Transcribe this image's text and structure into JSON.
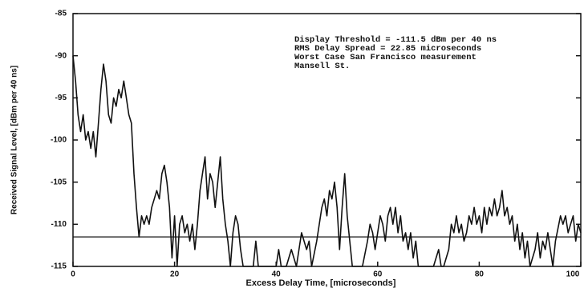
{
  "chart_data": {
    "type": "line",
    "xlabel": "Excess Delay Time, [microseconds]",
    "ylabel": "Received Signal Level, [dBm per 40 ns]",
    "annotations": [
      "Display Threshold = -111.5 dBm per 40 ns",
      "RMS Delay Spread  = 22.85 microseconds",
      "Worst Case San Francisco measurement",
      "Mansell St."
    ],
    "threshold": -111.5,
    "xlim": [
      0,
      100
    ],
    "xticks": [
      0,
      20,
      40,
      60,
      80,
      100
    ],
    "ylim": [
      -115,
      -85
    ],
    "yticks": [
      -115,
      -110,
      -105,
      -100,
      -95,
      -90,
      -85
    ],
    "x": [
      0,
      0.5,
      1,
      1.5,
      2,
      2.5,
      3,
      3.5,
      4,
      4.5,
      5,
      5.5,
      6,
      6.5,
      7,
      7.5,
      8,
      8.5,
      9,
      9.5,
      10,
      10.5,
      11,
      11.5,
      12,
      12.5,
      13,
      13.5,
      14,
      14.5,
      15,
      15.5,
      16,
      16.5,
      17,
      17.5,
      18,
      18.5,
      19,
      19.5,
      20,
      20.5,
      21,
      21.5,
      22,
      22.5,
      23,
      23.5,
      24,
      24.5,
      25,
      25.5,
      26,
      26.5,
      27,
      27.5,
      28,
      28.5,
      29,
      29.5,
      30,
      30.5,
      31,
      31.5,
      32,
      32.5,
      33,
      33.5,
      34,
      35.5,
      36,
      36.5,
      38,
      40,
      40.5,
      41,
      42,
      43,
      44,
      45,
      46,
      46.5,
      47,
      48,
      48.5,
      49,
      49.5,
      50,
      50.5,
      51,
      51.5,
      52,
      52.5,
      53,
      53.5,
      54,
      54.5,
      55,
      56,
      57,
      58,
      58.5,
      59,
      59.5,
      60,
      60.5,
      61,
      61.5,
      62,
      62.5,
      63,
      63.5,
      64,
      64.5,
      65,
      65.5,
      66,
      66.5,
      67,
      67.5,
      68,
      69,
      70,
      71,
      72,
      72.5,
      73,
      74,
      74.5,
      75,
      75.5,
      76,
      76.5,
      77,
      77.5,
      78,
      78.5,
      79,
      79.5,
      80,
      80.5,
      81,
      81.5,
      82,
      82.5,
      83,
      83.5,
      84,
      84.5,
      85,
      85.5,
      86,
      86.5,
      87,
      87.5,
      88,
      88.5,
      89,
      89.5,
      90,
      91,
      91.5,
      92,
      92.5,
      93,
      93.5,
      94,
      94.5,
      95,
      96,
      96.5,
      97,
      97.5,
      98,
      98.5,
      99,
      99.5,
      100
    ],
    "series": [
      {
        "name": "Received signal",
        "color": "#111111",
        "values": [
          -90,
          -93,
          -97,
          -99,
          -97,
          -100,
          -99,
          -101,
          -99,
          -102,
          -98,
          -94,
          -91,
          -93,
          -97,
          -98,
          -95,
          -96,
          -94,
          -95,
          -93,
          -95,
          -97,
          -98,
          -104,
          -108,
          -111.5,
          -109,
          -110,
          -109,
          -110,
          -108,
          -107,
          -106,
          -107,
          -104,
          -103,
          -105,
          -108,
          -114,
          -109,
          -115,
          -110,
          -109,
          -111,
          -110,
          -112,
          -110,
          -113,
          -110,
          -106,
          -104,
          -102,
          -107,
          -104,
          -105,
          -108,
          -105,
          -102,
          -107,
          -110,
          -112,
          -115,
          -111,
          -109,
          -110,
          -113,
          -115,
          -115,
          -115,
          -112,
          -115,
          -115,
          -115,
          -113,
          -115,
          -115,
          -113,
          -115,
          -111,
          -113,
          -112,
          -115,
          -112,
          -110,
          -108,
          -107,
          -109,
          -106,
          -107,
          -105,
          -108,
          -113,
          -108,
          -104,
          -109,
          -112,
          -115,
          -115,
          -115,
          -112,
          -110,
          -111,
          -113,
          -111,
          -109,
          -110,
          -112,
          -109,
          -108,
          -110,
          -108,
          -111,
          -109,
          -112,
          -111,
          -113,
          -111,
          -114,
          -112,
          -115,
          -115,
          -115,
          -115,
          -113,
          -115,
          -115,
          -113,
          -110,
          -111,
          -109,
          -111,
          -110,
          -112,
          -111,
          -109,
          -110,
          -108,
          -110,
          -109,
          -111,
          -108,
          -110,
          -108,
          -109,
          -107,
          -109,
          -108,
          -106,
          -109,
          -108,
          -110,
          -109,
          -112,
          -110,
          -113,
          -111,
          -114,
          -112,
          -115,
          -113,
          -111,
          -114,
          -112,
          -113,
          -111,
          -113,
          -115,
          -112,
          -109,
          -110,
          -109,
          -111,
          -110,
          -109,
          -112,
          -110,
          -111
        ]
      }
    ]
  }
}
